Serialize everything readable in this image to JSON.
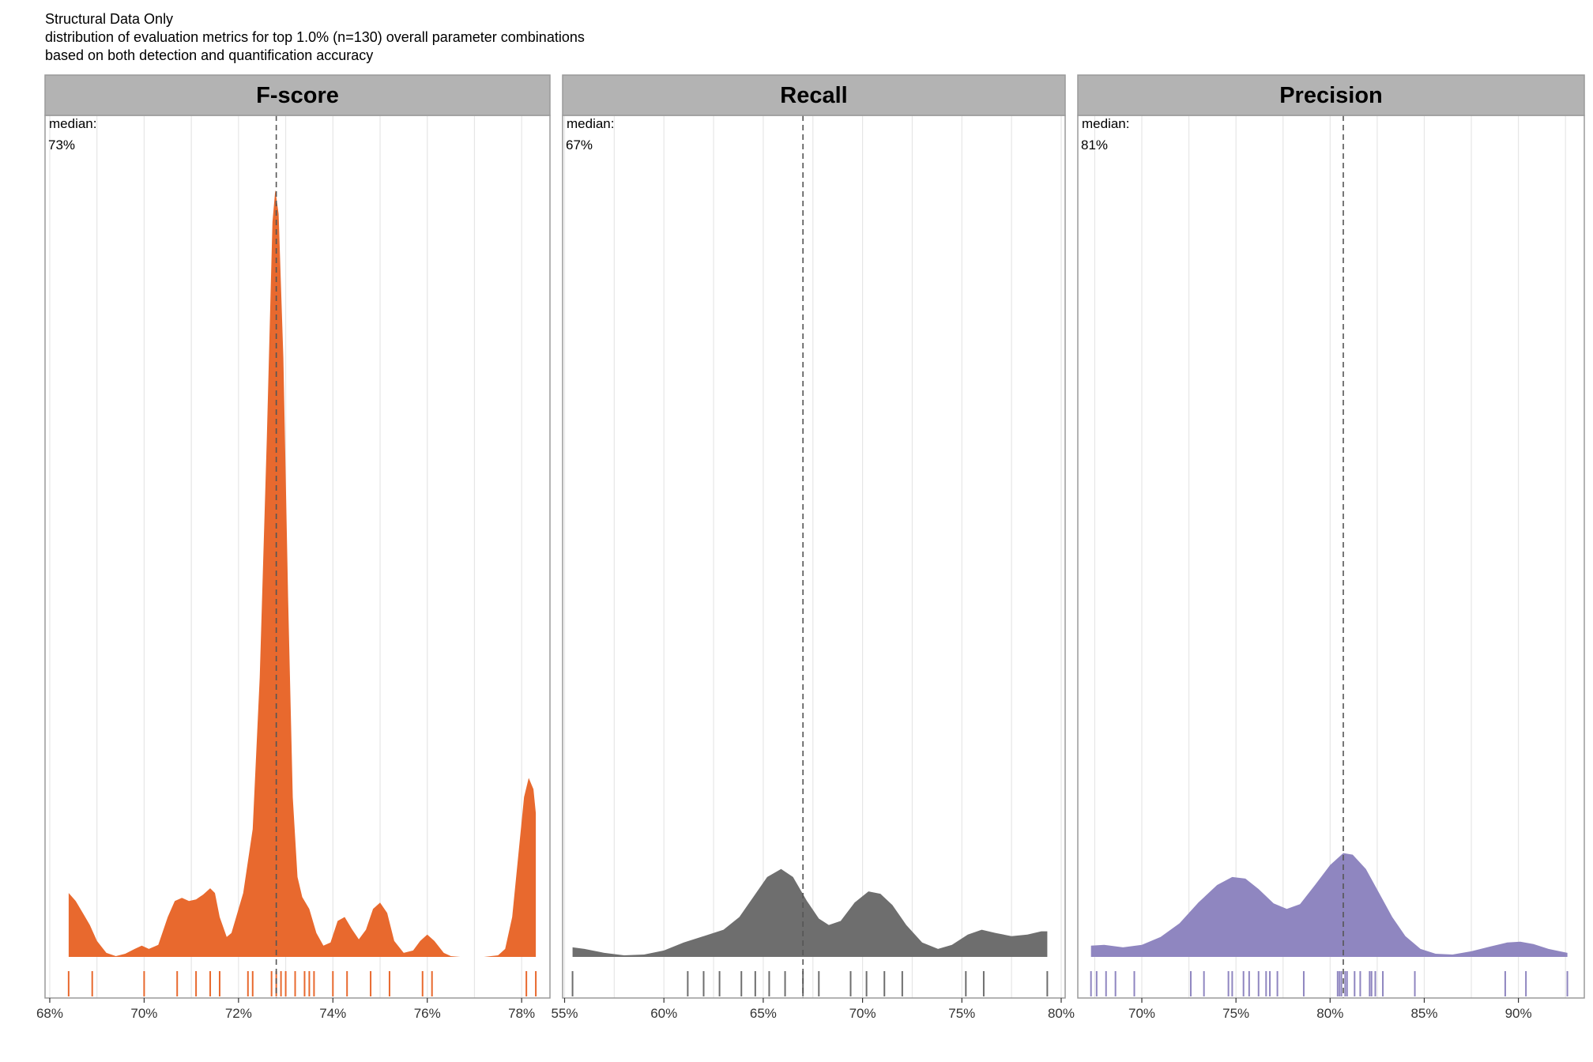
{
  "titles": {
    "line1": "Structural Data Only",
    "line2": "distribution of evaluation metrics for top 1.0% (n=130) overall parameter combinations",
    "line3": "based on both detection and quantification accuracy"
  },
  "median_prefix": "median:",
  "chart_data": [
    {
      "type": "area",
      "panel": "F-score",
      "color": "#E8692E",
      "xlim": [
        67.9,
        78.6
      ],
      "ticks": [
        68,
        70,
        72,
        74,
        76,
        78
      ],
      "tick_labels": [
        "68%",
        "70%",
        "72%",
        "74%",
        "76%",
        "78%"
      ],
      "median": 72.8,
      "median_label": "73%",
      "density_max": 1.0,
      "density": [
        [
          68.4,
          0.08
        ],
        [
          68.55,
          0.07
        ],
        [
          68.7,
          0.055
        ],
        [
          68.85,
          0.04
        ],
        [
          69.0,
          0.02
        ],
        [
          69.2,
          0.005
        ],
        [
          69.4,
          0.001
        ],
        [
          69.6,
          0.004
        ],
        [
          69.8,
          0.01
        ],
        [
          69.95,
          0.014
        ],
        [
          70.1,
          0.01
        ],
        [
          70.3,
          0.015
        ],
        [
          70.5,
          0.05
        ],
        [
          70.65,
          0.07
        ],
        [
          70.8,
          0.074
        ],
        [
          70.95,
          0.07
        ],
        [
          71.1,
          0.072
        ],
        [
          71.25,
          0.078
        ],
        [
          71.4,
          0.086
        ],
        [
          71.5,
          0.08
        ],
        [
          71.6,
          0.05
        ],
        [
          71.75,
          0.025
        ],
        [
          71.85,
          0.03
        ],
        [
          71.95,
          0.05
        ],
        [
          72.1,
          0.08
        ],
        [
          72.3,
          0.16
        ],
        [
          72.45,
          0.35
        ],
        [
          72.6,
          0.65
        ],
        [
          72.72,
          0.92
        ],
        [
          72.78,
          0.96
        ],
        [
          72.85,
          0.93
        ],
        [
          72.95,
          0.75
        ],
        [
          73.05,
          0.45
        ],
        [
          73.15,
          0.2
        ],
        [
          73.25,
          0.1
        ],
        [
          73.35,
          0.075
        ],
        [
          73.5,
          0.06
        ],
        [
          73.65,
          0.03
        ],
        [
          73.8,
          0.014
        ],
        [
          73.95,
          0.018
        ],
        [
          74.1,
          0.045
        ],
        [
          74.25,
          0.05
        ],
        [
          74.4,
          0.035
        ],
        [
          74.55,
          0.022
        ],
        [
          74.7,
          0.034
        ],
        [
          74.85,
          0.06
        ],
        [
          75.0,
          0.068
        ],
        [
          75.15,
          0.055
        ],
        [
          75.3,
          0.02
        ],
        [
          75.5,
          0.005
        ],
        [
          75.7,
          0.008
        ],
        [
          75.85,
          0.02
        ],
        [
          76.0,
          0.028
        ],
        [
          76.15,
          0.02
        ],
        [
          76.35,
          0.005
        ],
        [
          76.5,
          0.001
        ],
        [
          76.7,
          0.0
        ],
        [
          76.95,
          0.0
        ],
        [
          77.2,
          0.0
        ],
        [
          77.5,
          0.002
        ],
        [
          77.65,
          0.01
        ],
        [
          77.8,
          0.05
        ],
        [
          77.95,
          0.14
        ],
        [
          78.05,
          0.2
        ],
        [
          78.15,
          0.224
        ],
        [
          78.25,
          0.21
        ],
        [
          78.3,
          0.18
        ]
      ],
      "rug": [
        68.4,
        68.9,
        70.0,
        70.7,
        71.1,
        71.4,
        71.6,
        72.2,
        72.3,
        72.7,
        72.8,
        72.9,
        73.0,
        73.2,
        73.4,
        73.5,
        73.6,
        74.0,
        74.3,
        74.8,
        75.2,
        75.9,
        76.1,
        78.1,
        78.3
      ]
    },
    {
      "type": "area",
      "panel": "Recall",
      "color": "#6E6E6E",
      "xlim": [
        54.9,
        80.2
      ],
      "ticks": [
        55,
        60,
        65,
        70,
        75,
        80
      ],
      "tick_labels": [
        "55%",
        "60%",
        "65%",
        "70%",
        "75%",
        "80%"
      ],
      "median": 67.0,
      "median_label": "67%",
      "density_max": 1.0,
      "density": [
        [
          55.4,
          0.012
        ],
        [
          56.0,
          0.01
        ],
        [
          57.0,
          0.005
        ],
        [
          58.0,
          0.002
        ],
        [
          59.0,
          0.003
        ],
        [
          60.0,
          0.008
        ],
        [
          61.0,
          0.018
        ],
        [
          62.0,
          0.026
        ],
        [
          63.0,
          0.034
        ],
        [
          63.8,
          0.05
        ],
        [
          64.5,
          0.075
        ],
        [
          65.2,
          0.1
        ],
        [
          65.9,
          0.11
        ],
        [
          66.5,
          0.1
        ],
        [
          67.2,
          0.07
        ],
        [
          67.8,
          0.048
        ],
        [
          68.3,
          0.04
        ],
        [
          68.9,
          0.045
        ],
        [
          69.6,
          0.068
        ],
        [
          70.3,
          0.082
        ],
        [
          70.9,
          0.079
        ],
        [
          71.5,
          0.065
        ],
        [
          72.2,
          0.04
        ],
        [
          73.0,
          0.018
        ],
        [
          73.8,
          0.01
        ],
        [
          74.5,
          0.015
        ],
        [
          75.3,
          0.028
        ],
        [
          76.0,
          0.034
        ],
        [
          76.7,
          0.03
        ],
        [
          77.5,
          0.026
        ],
        [
          78.3,
          0.028
        ],
        [
          79.0,
          0.032
        ],
        [
          79.3,
          0.032
        ]
      ],
      "rug": [
        55.4,
        61.2,
        62.0,
        62.8,
        63.9,
        64.6,
        65.3,
        66.1,
        67.0,
        67.8,
        69.4,
        70.2,
        71.1,
        72.0,
        75.2,
        76.1,
        79.3
      ]
    },
    {
      "type": "area",
      "panel": "Precision",
      "color": "#8F86C0",
      "xlim": [
        66.6,
        93.5
      ],
      "ticks": [
        70,
        75,
        80,
        85,
        90
      ],
      "tick_labels": [
        "70%",
        "75%",
        "80%",
        "85%",
        "90%"
      ],
      "median": 80.7,
      "median_label": "81%",
      "density_max": 1.0,
      "density": [
        [
          67.3,
          0.014
        ],
        [
          68.0,
          0.015
        ],
        [
          69.0,
          0.012
        ],
        [
          70.0,
          0.015
        ],
        [
          71.0,
          0.025
        ],
        [
          72.0,
          0.042
        ],
        [
          73.0,
          0.068
        ],
        [
          74.0,
          0.09
        ],
        [
          74.8,
          0.1
        ],
        [
          75.5,
          0.098
        ],
        [
          76.2,
          0.085
        ],
        [
          77.0,
          0.067
        ],
        [
          77.7,
          0.06
        ],
        [
          78.4,
          0.066
        ],
        [
          79.2,
          0.09
        ],
        [
          80.0,
          0.115
        ],
        [
          80.7,
          0.13
        ],
        [
          81.2,
          0.128
        ],
        [
          81.9,
          0.11
        ],
        [
          82.6,
          0.08
        ],
        [
          83.3,
          0.05
        ],
        [
          84.0,
          0.026
        ],
        [
          84.8,
          0.01
        ],
        [
          85.6,
          0.004
        ],
        [
          86.5,
          0.003
        ],
        [
          87.5,
          0.007
        ],
        [
          88.5,
          0.013
        ],
        [
          89.4,
          0.018
        ],
        [
          90.1,
          0.019
        ],
        [
          90.8,
          0.016
        ],
        [
          91.6,
          0.01
        ],
        [
          92.4,
          0.006
        ],
        [
          92.6,
          0.005
        ]
      ],
      "rug": [
        67.3,
        67.6,
        68.1,
        68.6,
        69.6,
        72.6,
        73.3,
        74.6,
        74.8,
        75.4,
        75.7,
        76.2,
        76.6,
        76.8,
        77.2,
        78.6,
        80.4,
        80.5,
        80.6,
        80.8,
        80.9,
        81.3,
        81.6,
        82.1,
        82.2,
        82.4,
        82.8,
        84.5,
        89.3,
        90.4,
        92.6
      ]
    }
  ]
}
